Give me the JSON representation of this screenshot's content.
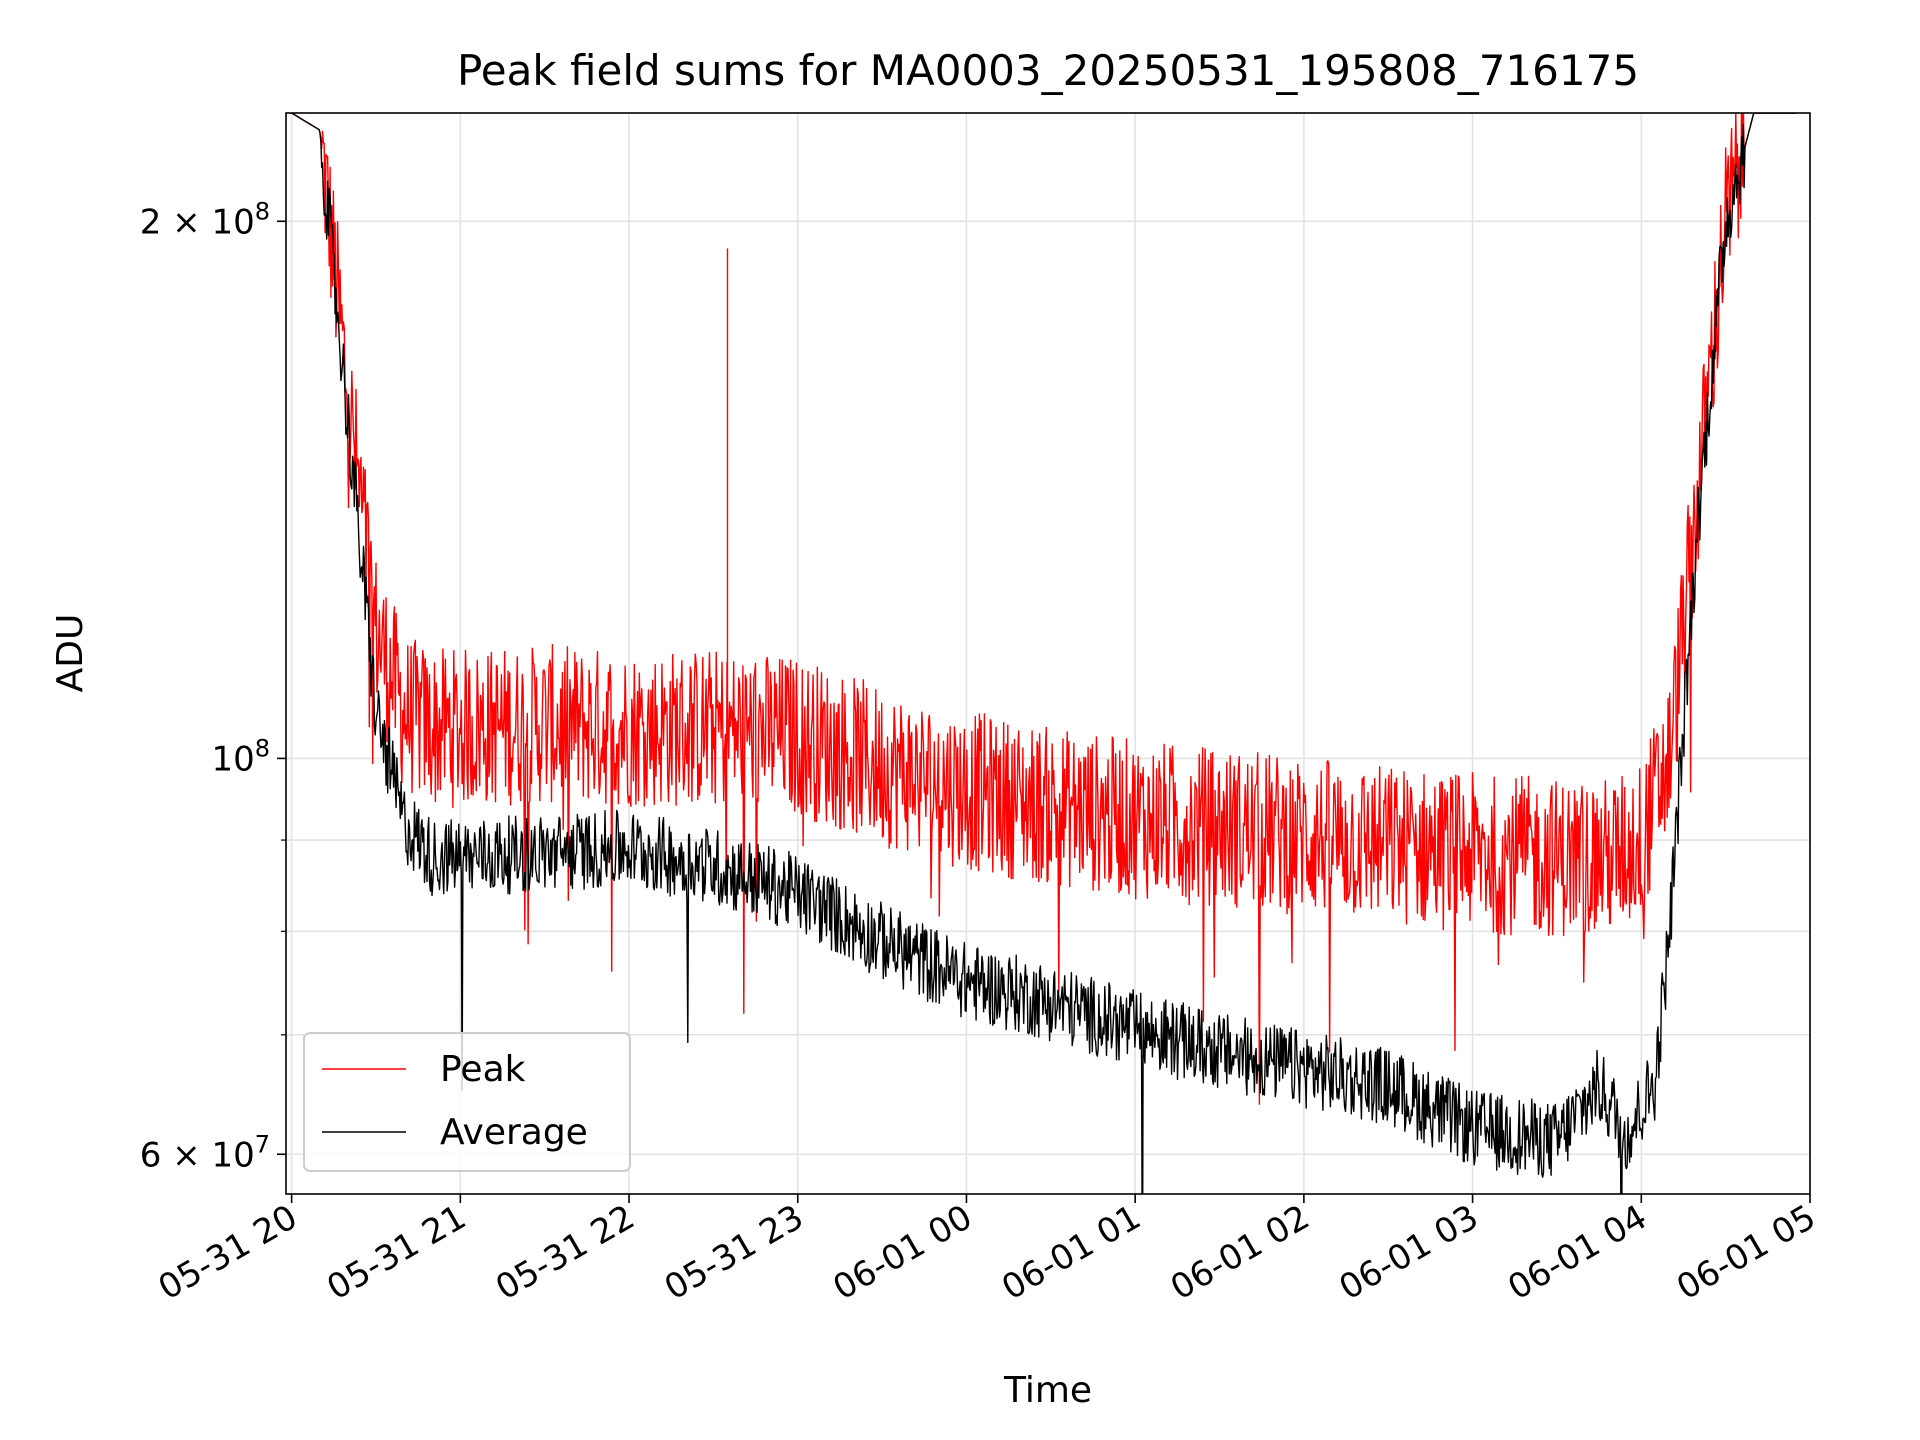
{
  "chart_data": {
    "type": "line",
    "title": "Peak field sums for MA0003_20250531_195808_716175",
    "xlabel": "Time",
    "ylabel": "ADU",
    "y_scale": "log",
    "x_ticks": [
      "05-31 20",
      "05-31 21",
      "05-31 22",
      "05-31 23",
      "06-01 00",
      "06-01 01",
      "06-01 02",
      "06-01 03",
      "06-01 04",
      "06-01 05"
    ],
    "xlim": [
      "2025-05-31 19:58",
      "2025-06-01 05:00"
    ],
    "ylim": [
      57000000,
      230000000
    ],
    "y_ticks": [
      {
        "value": 60000000,
        "mant": "6",
        "exp": "7"
      },
      {
        "value": 100000000,
        "mant": "",
        "exp": "8"
      },
      {
        "value": 200000000,
        "mant": "2",
        "exp": "8"
      }
    ],
    "y_minor_ticks": [
      70000000,
      80000000,
      90000000
    ],
    "grid": true,
    "legend_position": "lower left",
    "series": [
      {
        "name": "Peak",
        "color": "#ff0000",
        "x": [
          "2025-05-31 20:00",
          "2025-05-31 20:10",
          "2025-05-31 20:20",
          "2025-05-31 20:30",
          "2025-05-31 20:40",
          "2025-05-31 20:50",
          "2025-05-31 21:00",
          "2025-05-31 21:30",
          "2025-05-31 22:00",
          "2025-05-31 22:30",
          "2025-05-31 23:00",
          "2025-05-31 23:30",
          "2025-06-01 00:00",
          "2025-06-01 00:30",
          "2025-06-01 01:00",
          "2025-06-01 01:30",
          "2025-06-01 02:00",
          "2025-06-01 02:30",
          "2025-06-01 03:00",
          "2025-06-01 03:30",
          "2025-06-01 03:50",
          "2025-06-01 04:00",
          "2025-06-01 04:10",
          "2025-06-01 04:20",
          "2025-06-01 04:30",
          "2025-06-01 04:40",
          "2025-06-01 04:55"
        ],
        "values": [
          230000000,
          225000000,
          160000000,
          118000000,
          106000000,
          104000000,
          104000000,
          104500000,
          104000000,
          104000000,
          103000000,
          99000000,
          96000000,
          94000000,
          92500000,
          91500000,
          90500000,
          89500000,
          88500000,
          88000000,
          88000000,
          90000000,
          100000000,
          140000000,
          200000000,
          230000000,
          230000000
        ],
        "spike": {
          "x": "2025-05-31 22:35",
          "value": 193000000
        }
      },
      {
        "name": "Average",
        "color": "#000000",
        "x": [
          "2025-05-31 20:00",
          "2025-05-31 20:10",
          "2025-05-31 20:20",
          "2025-05-31 20:30",
          "2025-05-31 20:40",
          "2025-05-31 20:50",
          "2025-05-31 21:00",
          "2025-05-31 21:30",
          "2025-05-31 22:00",
          "2025-05-31 22:30",
          "2025-05-31 23:00",
          "2025-05-31 23:30",
          "2025-06-01 00:00",
          "2025-06-01 00:30",
          "2025-06-01 01:00",
          "2025-06-01 01:30",
          "2025-06-01 02:00",
          "2025-06-01 02:30",
          "2025-06-01 03:00",
          "2025-06-01 03:30",
          "2025-06-01 03:45",
          "2025-06-01 03:55",
          "2025-06-01 04:05",
          "2025-06-01 04:10",
          "2025-06-01 04:20",
          "2025-06-01 04:30",
          "2025-06-01 04:40",
          "2025-06-01 04:55"
        ],
        "values": [
          230000000,
          225000000,
          155000000,
          106000000,
          92000000,
          88000000,
          88000000,
          88500000,
          89000000,
          87000000,
          84000000,
          79000000,
          75000000,
          73000000,
          70500000,
          68500000,
          67000000,
          65500000,
          62000000,
          61000000,
          65500000,
          61500000,
          66000000,
          80000000,
          135000000,
          200000000,
          230000000,
          230000000
        ]
      }
    ]
  }
}
